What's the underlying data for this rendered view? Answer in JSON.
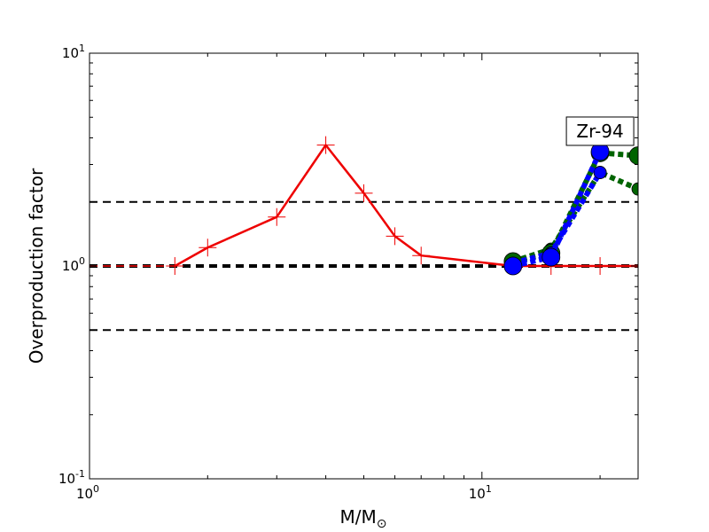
{
  "chart_data": {
    "type": "line",
    "xscale": "log",
    "yscale": "log",
    "xlim": [
      1,
      25
    ],
    "ylim": [
      0.1,
      10
    ],
    "xlabel": "M/M",
    "xlabel_sub": "⊙",
    "ylabel": "Overproduction factor",
    "x_ticks": [
      {
        "value": 1,
        "base": "10",
        "exp": "0"
      },
      {
        "value": 10,
        "base": "10",
        "exp": "1"
      }
    ],
    "y_ticks": [
      {
        "value": 0.1,
        "base": "10",
        "exp": "-1"
      },
      {
        "value": 1,
        "base": "10",
        "exp": "0"
      },
      {
        "value": 10,
        "base": "10",
        "exp": "1"
      }
    ],
    "grid": false,
    "annotation": {
      "text": "Zr-94",
      "x": 20,
      "y": 4.3
    },
    "hlines": [
      {
        "y": 2.0,
        "style": "dashed",
        "color": "#000000",
        "width": 2
      },
      {
        "y": 1.0,
        "style": "dashed",
        "color": "#000000",
        "width": 4
      },
      {
        "y": 0.5,
        "style": "dashed",
        "color": "#000000",
        "width": 2
      },
      {
        "y": 1.0,
        "style": "dashed",
        "color": "#ff0000",
        "width": 1.5,
        "xrange": [
          1,
          1.65
        ]
      }
    ],
    "series": [
      {
        "color": "#ee0000",
        "style": "solid",
        "marker": "plus",
        "x": [
          1.65,
          2,
          3,
          4,
          5,
          6,
          7,
          12,
          15,
          20,
          25
        ],
        "y": [
          1.0,
          1.22,
          1.7,
          3.7,
          2.2,
          1.38,
          1.12,
          1.0,
          1.0,
          1.0,
          1.0
        ]
      },
      {
        "color": "#006400",
        "style": "dotted",
        "marker": "circle",
        "markersize": 7,
        "x": [
          12,
          15,
          20,
          25
        ],
        "y": [
          1.05,
          1.2,
          2.75,
          2.3
        ]
      },
      {
        "color": "#006400",
        "style": "dotted",
        "marker": "circle",
        "markersize": 10,
        "x": [
          12,
          15,
          20,
          25
        ],
        "y": [
          1.05,
          1.15,
          3.4,
          3.3
        ]
      },
      {
        "color": "#0000ff",
        "style": "dotted",
        "marker": "circle",
        "markersize": 7,
        "x": [
          12,
          15,
          20
        ],
        "y": [
          1.03,
          1.15,
          2.75
        ]
      },
      {
        "color": "#0000ff",
        "style": "dotted",
        "marker": "circle",
        "markersize": 10,
        "x": [
          12,
          15,
          20
        ],
        "y": [
          1.0,
          1.1,
          3.45
        ]
      }
    ]
  }
}
